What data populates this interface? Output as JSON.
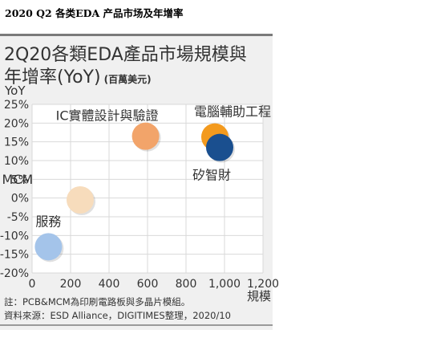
{
  "caption": "2020 Q2 各类EDA 产品市场及年增率",
  "card": {
    "title_line1": "2Q20各類EDA產品市場規模與",
    "title_line2": "年增率(YoY)",
    "unit": "(百萬美元)",
    "note": "註：PCB&MCM為印刷電路板與多晶片模組。",
    "source": "資料來源：ESD Alliance，DIGITIMES整理，2020/10"
  },
  "colors": {
    "card_bg": "#f0f0f0",
    "plot_bg": "#ffffff",
    "grid": "#d9d9d9",
    "text": "#333333"
  },
  "chart_data": {
    "type": "scatter",
    "xlabel": "規模",
    "ylabel": "YoY",
    "xlim": [
      0,
      1200
    ],
    "ylim": [
      -20,
      25
    ],
    "x_ticks": [
      "0",
      "200",
      "400",
      "600",
      "800",
      "1,000",
      "1,200"
    ],
    "y_ticks": [
      "25%",
      "20%",
      "15%",
      "10%",
      "5%",
      "0%",
      "-5%",
      "-10%",
      "-15%",
      "-20%"
    ],
    "grid": true,
    "points": [
      {
        "label": "IC實體設計與驗證",
        "x": 590,
        "y": 16.5,
        "color": "#f2a46a"
      },
      {
        "label": "電腦輔助工程",
        "x": 950,
        "y": 16.3,
        "color": "#f39a1e"
      },
      {
        "label": "矽智財",
        "x": 975,
        "y": 13.5,
        "color": "#1a4f8f"
      },
      {
        "label": "PCB & MCM",
        "x": 250,
        "y": -0.5,
        "color": "#f7dcbc"
      },
      {
        "label": "服務",
        "x": 85,
        "y": -13,
        "color": "#a4c4ea"
      }
    ]
  }
}
